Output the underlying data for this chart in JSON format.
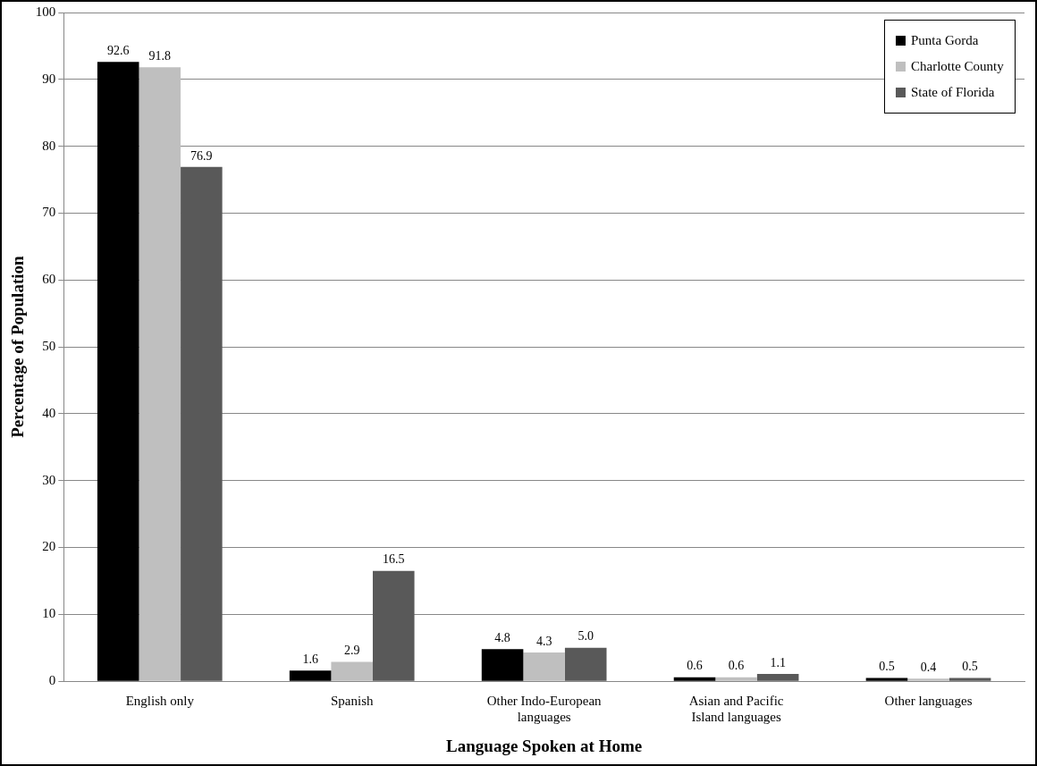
{
  "chart_data": {
    "type": "bar",
    "xlabel": "Language Spoken at Home",
    "ylabel": "Percentage of Population",
    "categories": [
      "English only",
      "Spanish",
      "Other Indo-European languages",
      "Asian and Pacific Island languages",
      "Other languages"
    ],
    "series": [
      {
        "name": "Punta Gorda",
        "color": "#000000",
        "values": [
          92.6,
          1.6,
          4.8,
          0.6,
          0.5
        ],
        "value_labels": [
          "92.6",
          "1.6",
          "4.8",
          "0.6",
          "0.5"
        ]
      },
      {
        "name": "Charlotte County",
        "color": "#bfbfbf",
        "values": [
          91.8,
          2.9,
          4.3,
          0.6,
          0.4
        ],
        "value_labels": [
          "91.8",
          "2.9",
          "4.3",
          "0.6",
          "0.4"
        ]
      },
      {
        "name": "State of Florida",
        "color": "#595959",
        "values": [
          76.9,
          16.5,
          5.0,
          1.1,
          0.5
        ],
        "value_labels": [
          "76.9",
          "16.5",
          "5.0",
          "1.1",
          "0.5"
        ]
      }
    ],
    "ylim": [
      0,
      100
    ],
    "yticks": [
      0,
      10,
      20,
      30,
      40,
      50,
      60,
      70,
      80,
      90,
      100
    ],
    "grid": "y",
    "legend": "top right"
  }
}
